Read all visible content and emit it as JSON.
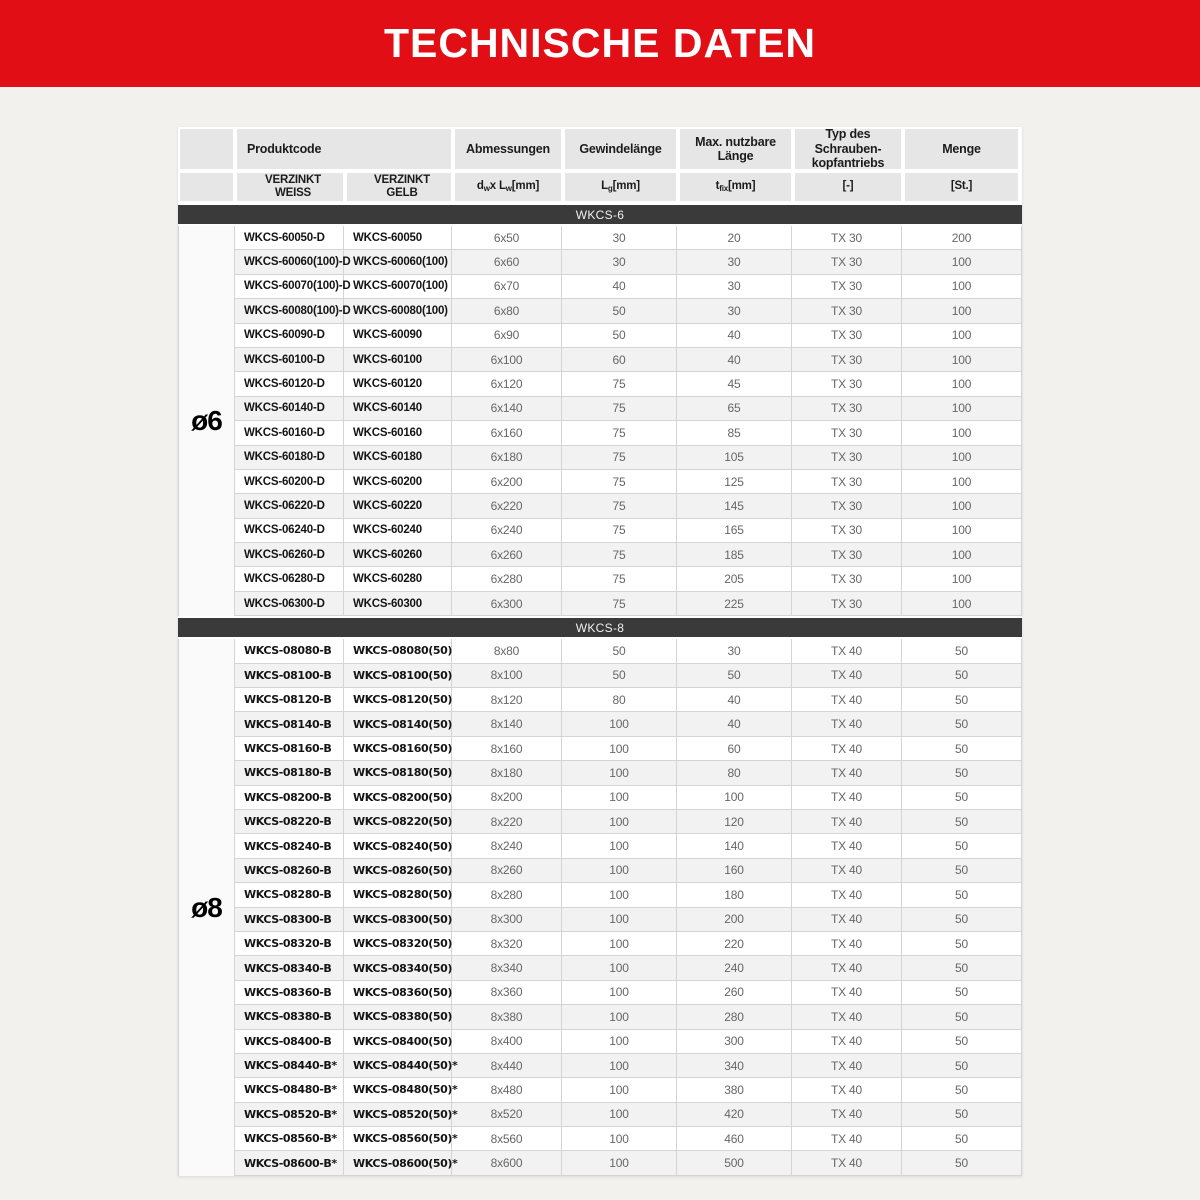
{
  "title": "TECHNISCHE DATEN",
  "colors": {
    "banner_red": "#e20e15",
    "section_bar": "#3a3a3a",
    "header_cell": "#e6e6e6",
    "alt_row": "#f2f2f2",
    "border": "#d4d4d4",
    "page_bg": "#f2f1ee"
  },
  "table": {
    "header": {
      "produktcode": "Produktcode",
      "abmessungen": "Abmessungen",
      "gewindelaenge": "Gewindelänge",
      "max_nutzbare_laenge": "Max. nutzbare Länge",
      "typ_des_schraubenkopfantriebs": "Typ des Schrauben-kopfantriebs",
      "menge": "Menge"
    },
    "subheader": {
      "verzinkt_weiss": "VERZINKT WEISS",
      "verzinkt_gelb": "VERZINKT GELB",
      "abmessungen_unit": [
        [
          "d",
          true
        ],
        [
          "w",
          false
        ],
        [
          " x L",
          true
        ],
        [
          "w",
          false
        ],
        [
          " [mm]",
          true
        ]
      ],
      "gewindelaenge_unit": [
        [
          "L",
          true
        ],
        [
          "g",
          false
        ],
        [
          " [mm]",
          true
        ]
      ],
      "max_unit": [
        [
          "t",
          true
        ],
        [
          "fix",
          false
        ],
        [
          " [mm]",
          true
        ]
      ],
      "typ_unit": "[-]",
      "menge_unit": "[St.]"
    },
    "columns": [
      "verzinkt_weiss",
      "verzinkt_gelb",
      "abmessungen",
      "gewindelaenge",
      "max_nutzbare_laenge",
      "typ",
      "menge"
    ],
    "sections": [
      {
        "label": "WKCS-6",
        "diameter": "ø6",
        "rows": [
          [
            "WKCS-60050-D",
            "WKCS-60050",
            "6x50",
            "30",
            "20",
            "TX 30",
            "200"
          ],
          [
            "WKCS-60060(100)-D",
            "WKCS-60060(100)",
            "6x60",
            "30",
            "30",
            "TX 30",
            "100"
          ],
          [
            "WKCS-60070(100)-D",
            "WKCS-60070(100)",
            "6x70",
            "40",
            "30",
            "TX 30",
            "100"
          ],
          [
            "WKCS-60080(100)-D",
            "WKCS-60080(100)",
            "6x80",
            "50",
            "30",
            "TX 30",
            "100"
          ],
          [
            "WKCS-60090-D",
            "WKCS-60090",
            "6x90",
            "50",
            "40",
            "TX 30",
            "100"
          ],
          [
            "WKCS-60100-D",
            "WKCS-60100",
            "6x100",
            "60",
            "40",
            "TX 30",
            "100"
          ],
          [
            "WKCS-60120-D",
            "WKCS-60120",
            "6x120",
            "75",
            "45",
            "TX 30",
            "100"
          ],
          [
            "WKCS-60140-D",
            "WKCS-60140",
            "6x140",
            "75",
            "65",
            "TX 30",
            "100"
          ],
          [
            "WKCS-60160-D",
            "WKCS-60160",
            "6x160",
            "75",
            "85",
            "TX 30",
            "100"
          ],
          [
            "WKCS-60180-D",
            "WKCS-60180",
            "6x180",
            "75",
            "105",
            "TX 30",
            "100"
          ],
          [
            "WKCS-60200-D",
            "WKCS-60200",
            "6x200",
            "75",
            "125",
            "TX 30",
            "100"
          ],
          [
            "WKCS-06220-D",
            "WKCS-60220",
            "6x220",
            "75",
            "145",
            "TX 30",
            "100"
          ],
          [
            "WKCS-06240-D",
            "WKCS-60240",
            "6x240",
            "75",
            "165",
            "TX 30",
            "100"
          ],
          [
            "WKCS-06260-D",
            "WKCS-60260",
            "6x260",
            "75",
            "185",
            "TX 30",
            "100"
          ],
          [
            "WKCS-06280-D",
            "WKCS-60280",
            "6x280",
            "75",
            "205",
            "TX 30",
            "100"
          ],
          [
            "WKCS-06300-D",
            "WKCS-60300",
            "6x300",
            "75",
            "225",
            "TX 30",
            "100"
          ]
        ]
      },
      {
        "label": "WKCS-8",
        "diameter": "ø8",
        "rows": [
          [
            "WKCS-08080-B",
            "WKCS-08080(50)",
            "8x80",
            "50",
            "30",
            "TX 40",
            "50"
          ],
          [
            "WKCS-08100-B",
            "WKCS-08100(50)",
            "8x100",
            "50",
            "50",
            "TX 40",
            "50"
          ],
          [
            "WKCS-08120-B",
            "WKCS-08120(50)",
            "8x120",
            "80",
            "40",
            "TX 40",
            "50"
          ],
          [
            "WKCS-08140-B",
            "WKCS-08140(50)",
            "8x140",
            "100",
            "40",
            "TX 40",
            "50"
          ],
          [
            "WKCS-08160-B",
            "WKCS-08160(50)",
            "8x160",
            "100",
            "60",
            "TX 40",
            "50"
          ],
          [
            "WKCS-08180-B",
            "WKCS-08180(50)",
            "8x180",
            "100",
            "80",
            "TX 40",
            "50"
          ],
          [
            "WKCS-08200-B",
            "WKCS-08200(50)",
            "8x200",
            "100",
            "100",
            "TX 40",
            "50"
          ],
          [
            "WKCS-08220-B",
            "WKCS-08220(50)",
            "8x220",
            "100",
            "120",
            "TX 40",
            "50"
          ],
          [
            "WKCS-08240-B",
            "WKCS-08240(50)",
            "8x240",
            "100",
            "140",
            "TX 40",
            "50"
          ],
          [
            "WKCS-08260-B",
            "WKCS-08260(50)",
            "8x260",
            "100",
            "160",
            "TX 40",
            "50"
          ],
          [
            "WKCS-08280-B",
            "WKCS-08280(50)",
            "8x280",
            "100",
            "180",
            "TX 40",
            "50"
          ],
          [
            "WKCS-08300-B",
            "WKCS-08300(50)",
            "8x300",
            "100",
            "200",
            "TX 40",
            "50"
          ],
          [
            "WKCS-08320-B",
            "WKCS-08320(50)",
            "8x320",
            "100",
            "220",
            "TX 40",
            "50"
          ],
          [
            "WKCS-08340-B",
            "WKCS-08340(50)",
            "8x340",
            "100",
            "240",
            "TX 40",
            "50"
          ],
          [
            "WKCS-08360-B",
            "WKCS-08360(50)",
            "8x360",
            "100",
            "260",
            "TX 40",
            "50"
          ],
          [
            "WKCS-08380-B",
            "WKCS-08380(50)",
            "8x380",
            "100",
            "280",
            "TX 40",
            "50"
          ],
          [
            "WKCS-08400-B",
            "WKCS-08400(50)",
            "8x400",
            "100",
            "300",
            "TX 40",
            "50"
          ],
          [
            "WKCS-08440-B*",
            "WKCS-08440(50)*",
            "8x440",
            "100",
            "340",
            "TX 40",
            "50"
          ],
          [
            "WKCS-08480-B*",
            "WKCS-08480(50)*",
            "8x480",
            "100",
            "380",
            "TX 40",
            "50"
          ],
          [
            "WKCS-08520-B*",
            "WKCS-08520(50)*",
            "8x520",
            "100",
            "420",
            "TX 40",
            "50"
          ],
          [
            "WKCS-08560-B*",
            "WKCS-08560(50)*",
            "8x560",
            "100",
            "460",
            "TX 40",
            "50"
          ],
          [
            "WKCS-08600-B*",
            "WKCS-08600(50)*",
            "8x600",
            "100",
            "500",
            "TX 40",
            "50"
          ]
        ]
      }
    ]
  }
}
